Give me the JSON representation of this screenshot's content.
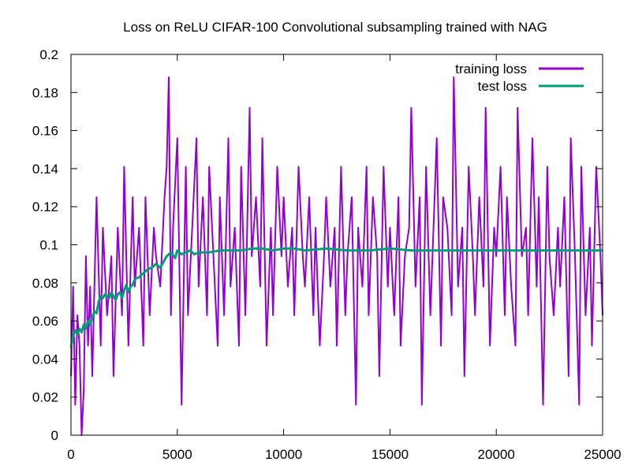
{
  "chart_data": {
    "type": "line",
    "title": "Loss on ReLU CIFAR-100 Convolutional subsampling trained with NAG",
    "xlabel": "",
    "ylabel": "",
    "xlim": [
      0,
      25000
    ],
    "ylim": [
      0,
      0.2
    ],
    "x_ticks": [
      "0",
      "5000",
      "10000",
      "15000",
      "20000",
      "25000"
    ],
    "y_ticks": [
      "0",
      "0.02",
      "0.04",
      "0.06",
      "0.08",
      "0.1",
      "0.12",
      "0.14",
      "0.16",
      "0.18",
      "0.2"
    ],
    "grid": false,
    "legend_position": "top-right",
    "series": [
      {
        "name": "training loss",
        "color": "#9400d3",
        "x": [
          0,
          100,
          200,
          300,
          400,
          500,
          600,
          700,
          800,
          900,
          1000,
          1200,
          1400,
          1500,
          1700,
          1900,
          2000,
          2200,
          2400,
          2500,
          2700,
          2900,
          3000,
          3200,
          3400,
          3500,
          3700,
          3900,
          4000,
          4200,
          4400,
          4500,
          4600,
          4700,
          4800,
          5000,
          5200,
          5400,
          5500,
          5700,
          5900,
          6000,
          6200,
          6400,
          6500,
          6700,
          6900,
          7000,
          7200,
          7400,
          7500,
          7700,
          7900,
          8000,
          8200,
          8400,
          8500,
          8700,
          8900,
          9000,
          9200,
          9400,
          9500,
          9700,
          9900,
          10000,
          10200,
          10400,
          10500,
          10700,
          10900,
          11000,
          11200,
          11400,
          11500,
          11700,
          11900,
          12000,
          12200,
          12400,
          12500,
          12700,
          12900,
          13000,
          13200,
          13400,
          13500,
          13700,
          13900,
          14000,
          14200,
          14400,
          14500,
          14700,
          14900,
          15000,
          15200,
          15400,
          15500,
          15700,
          15900,
          16000,
          16200,
          16400,
          16500,
          16700,
          16900,
          17000,
          17200,
          17400,
          17500,
          17700,
          17900,
          18000,
          18200,
          18400,
          18500,
          18700,
          18900,
          19000,
          19200,
          19400,
          19500,
          19700,
          19900,
          20000,
          20200,
          20400,
          20500,
          20700,
          20900,
          21000,
          21200,
          21400,
          21500,
          21700,
          21900,
          22000,
          22200,
          22400,
          22500,
          22700,
          22900,
          23000,
          23200,
          23400,
          23500,
          23700,
          23900,
          24000,
          24200,
          24400,
          24500,
          24700,
          24900,
          25000
        ],
        "y": [
          0.031,
          0.078,
          0.016,
          0.063,
          0.047,
          0.0,
          0.024,
          0.094,
          0.047,
          0.078,
          0.031,
          0.125,
          0.047,
          0.109,
          0.063,
          0.094,
          0.031,
          0.109,
          0.063,
          0.141,
          0.047,
          0.125,
          0.078,
          0.109,
          0.047,
          0.125,
          0.063,
          0.109,
          0.094,
          0.078,
          0.125,
          0.141,
          0.188,
          0.063,
          0.109,
          0.156,
          0.016,
          0.141,
          0.063,
          0.109,
          0.156,
          0.078,
          0.125,
          0.063,
          0.141,
          0.094,
          0.047,
          0.125,
          0.063,
          0.156,
          0.078,
          0.109,
          0.047,
          0.141,
          0.063,
          0.172,
          0.094,
          0.125,
          0.078,
          0.156,
          0.047,
          0.109,
          0.063,
          0.141,
          0.094,
          0.125,
          0.078,
          0.109,
          0.063,
          0.141,
          0.094,
          0.078,
          0.125,
          0.063,
          0.109,
          0.047,
          0.094,
          0.125,
          0.078,
          0.109,
          0.047,
          0.141,
          0.063,
          0.094,
          0.125,
          0.016,
          0.109,
          0.078,
          0.141,
          0.063,
          0.125,
          0.094,
          0.031,
          0.141,
          0.078,
          0.109,
          0.063,
          0.125,
          0.047,
          0.094,
          0.109,
          0.172,
          0.078,
          0.125,
          0.016,
          0.141,
          0.063,
          0.094,
          0.156,
          0.047,
          0.125,
          0.109,
          0.063,
          0.188,
          0.078,
          0.109,
          0.031,
          0.141,
          0.094,
          0.063,
          0.125,
          0.078,
          0.172,
          0.047,
          0.109,
          0.094,
          0.141,
          0.063,
          0.125,
          0.078,
          0.047,
          0.172,
          0.094,
          0.109,
          0.063,
          0.156,
          0.078,
          0.125,
          0.016,
          0.141,
          0.094,
          0.063,
          0.109,
          0.078,
          0.125,
          0.031,
          0.156,
          0.094,
          0.016,
          0.141,
          0.063,
          0.109,
          0.047,
          0.141,
          0.094,
          0.063
        ]
      },
      {
        "name": "test loss",
        "color": "#009e73",
        "x": [
          0,
          100,
          200,
          300,
          400,
          500,
          600,
          700,
          800,
          900,
          1000,
          1100,
          1200,
          1300,
          1400,
          1500,
          1600,
          1700,
          1800,
          1900,
          2000,
          2100,
          2200,
          2300,
          2400,
          2500,
          2600,
          2700,
          2800,
          2900,
          3000,
          3200,
          3400,
          3600,
          3800,
          4000,
          4200,
          4400,
          4500,
          4700,
          4900,
          5000,
          5200,
          5400,
          5600,
          5800,
          6000,
          6500,
          7000,
          7500,
          8000,
          8500,
          9000,
          9500,
          10000,
          10500,
          11000,
          12000,
          13000,
          14000,
          15000,
          16000,
          17000,
          18000,
          19000,
          20000,
          21000,
          22000,
          23000,
          24000,
          25000
        ],
        "y": [
          0.046,
          0.052,
          0.055,
          0.053,
          0.056,
          0.054,
          0.058,
          0.056,
          0.06,
          0.058,
          0.062,
          0.065,
          0.064,
          0.07,
          0.073,
          0.072,
          0.074,
          0.073,
          0.072,
          0.075,
          0.073,
          0.071,
          0.074,
          0.075,
          0.072,
          0.076,
          0.079,
          0.075,
          0.078,
          0.079,
          0.082,
          0.083,
          0.085,
          0.087,
          0.088,
          0.09,
          0.088,
          0.092,
          0.094,
          0.096,
          0.093,
          0.097,
          0.095,
          0.096,
          0.097,
          0.095,
          0.096,
          0.096,
          0.097,
          0.097,
          0.097,
          0.098,
          0.098,
          0.097,
          0.098,
          0.098,
          0.097,
          0.098,
          0.097,
          0.097,
          0.098,
          0.097,
          0.097,
          0.097,
          0.097,
          0.097,
          0.097,
          0.097,
          0.097,
          0.097,
          0.097
        ]
      }
    ]
  }
}
